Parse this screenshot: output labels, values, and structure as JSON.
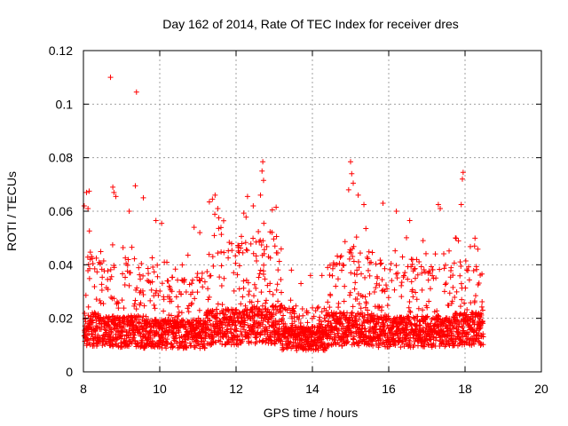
{
  "chart_data": {
    "type": "scatter",
    "title": "Day 162 of 2014, Rate Of TEC Index for receiver dres",
    "xlabel": "GPS time / hours",
    "ylabel": "ROTI / TECUs",
    "xlim": [
      8,
      20
    ],
    "ylim": [
      0,
      0.12
    ],
    "x_ticks": [
      8,
      10,
      12,
      14,
      16,
      18,
      20
    ],
    "x_tick_labels": [
      "8",
      "10",
      "12",
      "14",
      "16",
      "18",
      "20"
    ],
    "y_ticks": [
      0,
      0.02,
      0.04,
      0.06,
      0.08,
      0.1,
      0.12
    ],
    "y_tick_labels": [
      "0",
      "0.02",
      "0.04",
      "0.06",
      "0.08",
      "0.1",
      "0.12"
    ],
    "grid": true,
    "marker": "+",
    "color": "#ff0000",
    "series": [
      {
        "name": "ROTI",
        "points": [
          [
            8.71,
            0.11
          ],
          [
            9.39,
            0.1045
          ],
          [
            9.36,
            0.0695
          ],
          [
            12.7,
            0.0785
          ],
          [
            12.68,
            0.075
          ],
          [
            12.72,
            0.0715
          ],
          [
            12.64,
            0.066
          ],
          [
            15.0,
            0.0785
          ],
          [
            15.03,
            0.074
          ],
          [
            15.07,
            0.0705
          ],
          [
            14.95,
            0.068
          ],
          [
            17.95,
            0.0745
          ],
          [
            17.93,
            0.072
          ],
          [
            17.9,
            0.0625
          ],
          [
            8.08,
            0.067
          ],
          [
            8.15,
            0.0675
          ],
          [
            8.02,
            0.062
          ],
          [
            8.12,
            0.061
          ],
          [
            8.77,
            0.069
          ],
          [
            8.8,
            0.067
          ],
          [
            8.85,
            0.0655
          ],
          [
            9.57,
            0.065
          ],
          [
            9.2,
            0.06
          ],
          [
            9.9,
            0.0565
          ],
          [
            10.05,
            0.0555
          ],
          [
            11.3,
            0.0635
          ],
          [
            11.38,
            0.0645
          ],
          [
            11.45,
            0.066
          ],
          [
            11.52,
            0.061
          ],
          [
            12.3,
            0.0655
          ],
          [
            12.45,
            0.062
          ],
          [
            12.95,
            0.0605
          ],
          [
            13.05,
            0.0615
          ],
          [
            15.2,
            0.066
          ],
          [
            15.35,
            0.0625
          ],
          [
            15.85,
            0.063
          ],
          [
            16.2,
            0.06
          ],
          [
            16.55,
            0.0565
          ],
          [
            17.3,
            0.0625
          ],
          [
            17.35,
            0.061
          ],
          [
            16.9,
            0.049
          ],
          [
            17.75,
            0.05
          ],
          [
            18.25,
            0.047
          ],
          [
            10.9,
            0.054
          ],
          [
            11.05,
            0.052
          ],
          [
            13.45,
            0.038
          ],
          [
            13.95,
            0.036
          ],
          [
            14.25,
            0.036
          ],
          [
            14.4,
            0.039
          ],
          [
            14.55,
            0.04
          ],
          [
            13.7,
            0.033
          ]
        ]
      }
    ],
    "generator": {
      "start": 8.02,
      "end": 18.48,
      "step": 0.0035,
      "segments": [
        {
          "from": 8.0,
          "to": 8.5,
          "base": 0.018,
          "peak": 0.045
        },
        {
          "from": 8.5,
          "to": 9.5,
          "base": 0.017,
          "peak": 0.042
        },
        {
          "from": 9.5,
          "to": 10.5,
          "base": 0.016,
          "peak": 0.036
        },
        {
          "from": 10.5,
          "to": 11.2,
          "base": 0.016,
          "peak": 0.038
        },
        {
          "from": 11.2,
          "to": 12.2,
          "base": 0.019,
          "peak": 0.05
        },
        {
          "from": 12.2,
          "to": 13.2,
          "base": 0.02,
          "peak": 0.05
        },
        {
          "from": 13.2,
          "to": 14.4,
          "base": 0.014,
          "peak": 0.024
        },
        {
          "from": 14.4,
          "to": 15.6,
          "base": 0.018,
          "peak": 0.045
        },
        {
          "from": 15.6,
          "to": 16.8,
          "base": 0.017,
          "peak": 0.042
        },
        {
          "from": 16.8,
          "to": 17.7,
          "base": 0.017,
          "peak": 0.04
        },
        {
          "from": 17.7,
          "to": 18.5,
          "base": 0.018,
          "peak": 0.042
        }
      ],
      "floor": 0.004
    }
  }
}
